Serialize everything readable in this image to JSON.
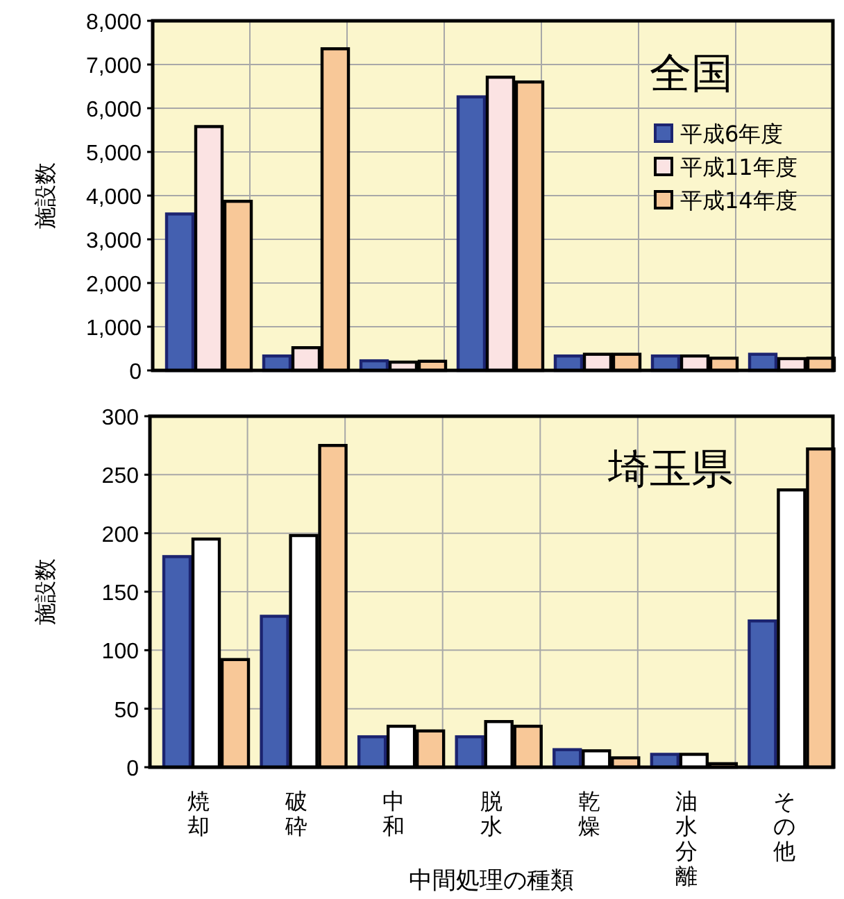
{
  "chart_data": [
    {
      "type": "bar",
      "title": "全国",
      "ylabel": "施設数",
      "categories": [
        null,
        null,
        null,
        null,
        null,
        null,
        null
      ],
      "series": [
        {
          "name": "平成6年度",
          "color": "#4460b0",
          "values": [
            3580,
            330,
            220,
            6260,
            330,
            330,
            370
          ]
        },
        {
          "name": "平成11年度",
          "color": "#fbe3e3",
          "values": [
            5580,
            520,
            190,
            6710,
            370,
            330,
            270
          ]
        },
        {
          "name": "平成14年度",
          "color": "#f8c898",
          "values": [
            3870,
            7360,
            210,
            6600,
            370,
            280,
            280
          ]
        }
      ],
      "ylim": [
        0,
        8000
      ],
      "yticks": [
        0,
        {
          "value": 1000,
          "label": "1,000"
        },
        {
          "value": 2000,
          "label": "2,000"
        },
        {
          "value": 3000,
          "label": "3,000"
        },
        {
          "value": 4000,
          "label": "4,000"
        },
        {
          "value": 5000,
          "label": "5,000"
        },
        {
          "value": 6000,
          "label": "6,000"
        },
        {
          "value": 7000,
          "label": "7,000"
        },
        {
          "value": 8000,
          "label": "8,000"
        }
      ],
      "grid": true,
      "legend": "right",
      "tick_labels": "y"
    },
    {
      "type": "bar",
      "title": "埼玉県",
      "ylabel": "施設数",
      "xlabel": "中間処理の種類",
      "categories": [
        "焼却",
        "破砕",
        "中和",
        "脱水",
        "乾燥",
        "油水分離",
        "その他"
      ],
      "series": [
        {
          "color": "#4460b0",
          "values": [
            180,
            129,
            26,
            26,
            15,
            11,
            125
          ]
        },
        {
          "color": "#ffffff",
          "values": [
            195,
            198,
            35,
            39,
            14,
            11,
            237
          ]
        },
        {
          "color": "#f8c898",
          "values": [
            92,
            275,
            31,
            35,
            8,
            3,
            272
          ]
        }
      ],
      "ylim": [
        0,
        300
      ],
      "yticks": [
        0,
        50,
        100,
        150,
        200,
        250,
        300
      ],
      "grid": true
    }
  ]
}
